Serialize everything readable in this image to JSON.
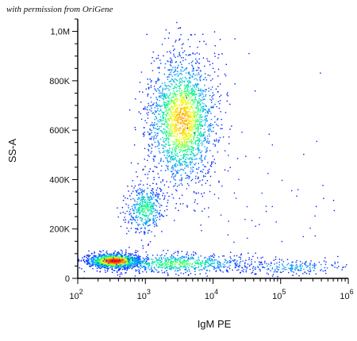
{
  "watermark": "with permission from OriGene",
  "chart_data": {
    "type": "scatter",
    "title": "",
    "xlabel": "IgM PE",
    "ylabel": "SS-A",
    "x_scale": "log",
    "xlim": [
      100,
      1000000
    ],
    "ylim": [
      0,
      1050000
    ],
    "x_ticks": [
      {
        "value": 100,
        "base": "10",
        "exp": "2"
      },
      {
        "value": 1000,
        "base": "10",
        "exp": "3"
      },
      {
        "value": 10000,
        "base": "10",
        "exp": "4"
      },
      {
        "value": 100000,
        "base": "10",
        "exp": "5"
      },
      {
        "value": 1000000,
        "base": "10",
        "exp": "6"
      }
    ],
    "y_ticks": [
      {
        "value": 0,
        "label": "0"
      },
      {
        "value": 200000,
        "label": "200K"
      },
      {
        "value": 400000,
        "label": "400K"
      },
      {
        "value": 600000,
        "label": "600K"
      },
      {
        "value": 800000,
        "label": "800K"
      },
      {
        "value": 1000000,
        "label": "1,0M"
      }
    ],
    "density_colormap": [
      "#0000ff",
      "#00a0ff",
      "#00ff80",
      "#ffff00",
      "#ff8000",
      "#ff0000"
    ],
    "populations": [
      {
        "name": "IgM-negative low side scatter",
        "x_center": 350,
        "y_center": 70000,
        "x_spread_log": 0.2,
        "y_spread": 15000,
        "points": 1400,
        "peak_density": 1.0
      },
      {
        "name": "IgM tail low side scatter",
        "x_center": 3000,
        "y_center": 60000,
        "x_spread_log": 0.55,
        "y_spread": 20000,
        "points": 700,
        "peak_density": 0.45
      },
      {
        "name": "IgM high tail",
        "x_center": 150000,
        "y_center": 45000,
        "x_spread_log": 0.45,
        "y_spread": 15000,
        "points": 220,
        "peak_density": 0.2
      },
      {
        "name": "intermediate side scatter",
        "x_center": 1000,
        "y_center": 280000,
        "x_spread_log": 0.14,
        "y_spread": 50000,
        "points": 450,
        "peak_density": 0.4
      },
      {
        "name": "high side scatter IgM+",
        "x_center": 3500,
        "y_center": 640000,
        "x_spread_log": 0.25,
        "y_spread": 130000,
        "points": 2200,
        "peak_density": 0.72
      },
      {
        "name": "sparse scatter",
        "x_center": 30000,
        "y_center": 350000,
        "x_spread_log": 0.8,
        "y_spread": 220000,
        "points": 90,
        "peak_density": 0.05
      }
    ]
  }
}
